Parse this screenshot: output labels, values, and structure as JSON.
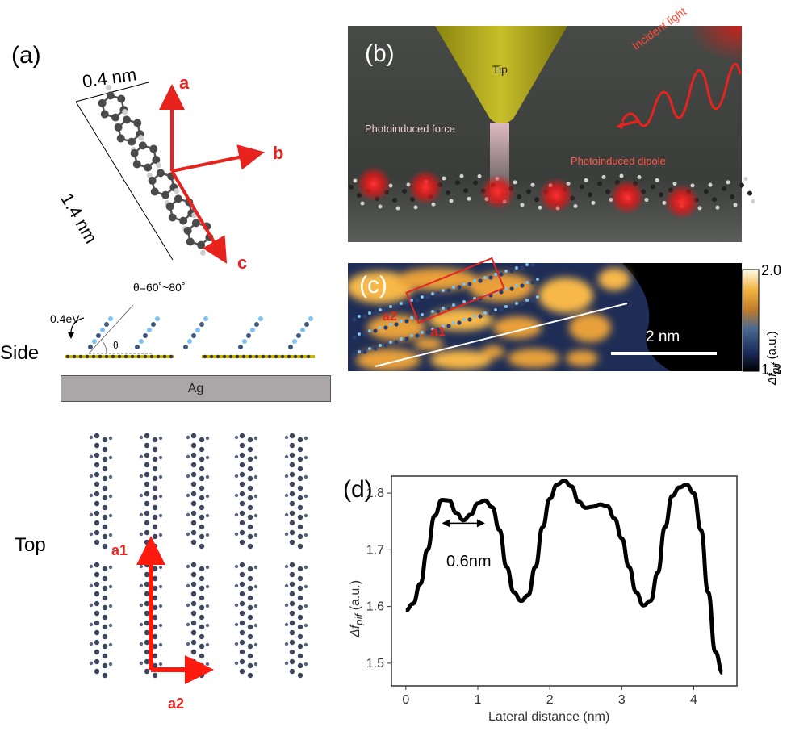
{
  "panel_a": {
    "label": "(a)",
    "dim_width": "0.4 nm",
    "dim_length": "1.4 nm",
    "axis_a": "a",
    "axis_b": "b",
    "axis_c": "c",
    "theta_range": "θ=60˚~80˚",
    "energy": "0.4eV",
    "theta": "θ",
    "side_label": "Side",
    "substrate": "Ag",
    "top_label": "Top",
    "vec_a1": "a1",
    "vec_a2": "a2"
  },
  "panel_b": {
    "label": "(b)",
    "tip": "Tip",
    "incident_light": "Incident light",
    "photo_force": "Photoinduced force",
    "photo_dipole": "Photoinduced dipole"
  },
  "panel_c": {
    "label": "(c)",
    "a1": "a1",
    "a2": "a2",
    "scalebar": "2 nm",
    "cbar_max": "2.0",
    "cbar_min": "1.3",
    "cbar_label": "Δf",
    "cbar_sub": "pif",
    "cbar_unit": " (a.u.)"
  },
  "panel_d": {
    "label": "(d)",
    "annotation": "0.6nm"
  },
  "colors": {
    "accent_red": "#e8231e",
    "molecule_dark": "#3c465f",
    "molecule_light": "#6fb6e6"
  },
  "chart_data": {
    "type": "line",
    "xlabel": "Lateral distance (nm)",
    "ylabel": "Δf",
    "ylabel_sub": "pif",
    "ylabel_unit": " (a.u.)",
    "xlim": [
      -0.2,
      4.6
    ],
    "ylim": [
      1.46,
      1.83
    ],
    "xticks": [
      0,
      1,
      2,
      3,
      4
    ],
    "yticks": [
      1.5,
      1.6,
      1.7,
      1.8
    ],
    "grid": false,
    "series": [
      {
        "x": [
          0,
          0.1,
          0.2,
          0.3,
          0.4,
          0.5,
          0.6,
          0.7,
          0.8,
          0.9,
          1.0,
          1.1,
          1.2,
          1.3,
          1.4,
          1.5,
          1.6,
          1.7,
          1.8,
          1.9,
          2.0,
          2.1,
          2.2,
          2.3,
          2.4,
          2.5,
          2.6,
          2.7,
          2.8,
          2.9,
          3.0,
          3.1,
          3.2,
          3.3,
          3.4,
          3.5,
          3.6,
          3.7,
          3.8,
          3.9,
          4.0,
          4.1,
          4.2,
          4.3,
          4.4
        ],
        "y": [
          1.593,
          1.605,
          1.64,
          1.7,
          1.76,
          1.788,
          1.787,
          1.765,
          1.752,
          1.762,
          1.782,
          1.787,
          1.775,
          1.735,
          1.67,
          1.625,
          1.61,
          1.62,
          1.67,
          1.74,
          1.79,
          1.815,
          1.822,
          1.812,
          1.785,
          1.774,
          1.776,
          1.78,
          1.777,
          1.755,
          1.72,
          1.67,
          1.625,
          1.602,
          1.61,
          1.66,
          1.74,
          1.795,
          1.81,
          1.815,
          1.8,
          1.735,
          1.625,
          1.52,
          1.483
        ]
      }
    ]
  }
}
